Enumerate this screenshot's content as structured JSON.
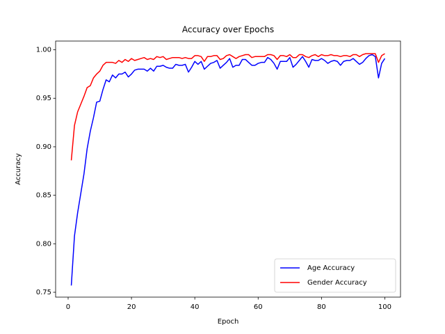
{
  "chart_data": {
    "type": "line",
    "title": "Accuracy over Epochs",
    "xlabel": "Epoch",
    "ylabel": "Accuracy",
    "x": [
      1,
      2,
      3,
      4,
      5,
      6,
      7,
      8,
      9,
      10,
      11,
      12,
      13,
      14,
      15,
      16,
      17,
      18,
      19,
      20,
      21,
      22,
      23,
      24,
      25,
      26,
      27,
      28,
      29,
      30,
      31,
      32,
      33,
      34,
      35,
      36,
      37,
      38,
      39,
      40,
      41,
      42,
      43,
      44,
      45,
      46,
      47,
      48,
      49,
      50,
      51,
      52,
      53,
      54,
      55,
      56,
      57,
      58,
      59,
      60,
      61,
      62,
      63,
      64,
      65,
      66,
      67,
      68,
      69,
      70,
      71,
      72,
      73,
      74,
      75,
      76,
      77,
      78,
      79,
      80,
      81,
      82,
      83,
      84,
      85,
      86,
      87,
      88,
      89,
      90,
      91,
      92,
      93,
      94,
      95,
      96,
      97,
      98,
      99,
      100
    ],
    "series": [
      {
        "name": "Age Accuracy",
        "color": "#0000ff",
        "values": [
          0.757,
          0.808,
          0.832,
          0.852,
          0.872,
          0.898,
          0.916,
          0.93,
          0.946,
          0.947,
          0.959,
          0.969,
          0.967,
          0.974,
          0.971,
          0.975,
          0.975,
          0.977,
          0.972,
          0.975,
          0.979,
          0.98,
          0.98,
          0.98,
          0.978,
          0.981,
          0.978,
          0.983,
          0.983,
          0.984,
          0.982,
          0.981,
          0.981,
          0.985,
          0.984,
          0.984,
          0.985,
          0.977,
          0.982,
          0.988,
          0.985,
          0.988,
          0.98,
          0.983,
          0.986,
          0.987,
          0.989,
          0.981,
          0.984,
          0.987,
          0.991,
          0.982,
          0.984,
          0.984,
          0.99,
          0.99,
          0.987,
          0.984,
          0.984,
          0.986,
          0.987,
          0.987,
          0.992,
          0.99,
          0.986,
          0.98,
          0.988,
          0.988,
          0.988,
          0.992,
          0.982,
          0.985,
          0.989,
          0.993,
          0.988,
          0.982,
          0.99,
          0.989,
          0.989,
          0.991,
          0.989,
          0.986,
          0.988,
          0.989,
          0.988,
          0.984,
          0.988,
          0.989,
          0.989,
          0.991,
          0.988,
          0.985,
          0.987,
          0.991,
          0.994,
          0.995,
          0.993,
          0.971,
          0.986,
          0.991
        ]
      },
      {
        "name": "Gender Accuracy",
        "color": "#ff0000",
        "values": [
          0.886,
          0.922,
          0.936,
          0.944,
          0.952,
          0.961,
          0.963,
          0.971,
          0.975,
          0.978,
          0.984,
          0.987,
          0.987,
          0.987,
          0.986,
          0.989,
          0.987,
          0.99,
          0.988,
          0.991,
          0.989,
          0.99,
          0.991,
          0.992,
          0.99,
          0.991,
          0.99,
          0.993,
          0.992,
          0.993,
          0.99,
          0.991,
          0.992,
          0.992,
          0.992,
          0.991,
          0.992,
          0.991,
          0.991,
          0.994,
          0.994,
          0.993,
          0.988,
          0.993,
          0.993,
          0.994,
          0.994,
          0.99,
          0.991,
          0.994,
          0.995,
          0.993,
          0.991,
          0.993,
          0.994,
          0.995,
          0.995,
          0.992,
          0.993,
          0.993,
          0.993,
          0.993,
          0.995,
          0.995,
          0.994,
          0.99,
          0.994,
          0.994,
          0.993,
          0.995,
          0.992,
          0.992,
          0.995,
          0.995,
          0.993,
          0.992,
          0.994,
          0.995,
          0.993,
          0.995,
          0.994,
          0.994,
          0.995,
          0.994,
          0.994,
          0.993,
          0.994,
          0.994,
          0.993,
          0.995,
          0.995,
          0.993,
          0.995,
          0.996,
          0.996,
          0.996,
          0.996,
          0.987,
          0.994,
          0.996
        ]
      }
    ],
    "xlim": [
      -3.95,
      104.95
    ],
    "xticks": [
      0,
      20,
      40,
      60,
      80,
      100
    ],
    "ylim": [
      0.745,
      1.009
    ],
    "yticks": [
      {
        "value": 0.75,
        "label": "0.75"
      },
      {
        "value": 0.8,
        "label": "0.80"
      },
      {
        "value": 0.85,
        "label": "0.85"
      },
      {
        "value": 0.9,
        "label": "0.90"
      },
      {
        "value": 0.95,
        "label": "0.95"
      },
      {
        "value": 1.0,
        "label": "1.00"
      }
    ],
    "legend": "lower right"
  }
}
